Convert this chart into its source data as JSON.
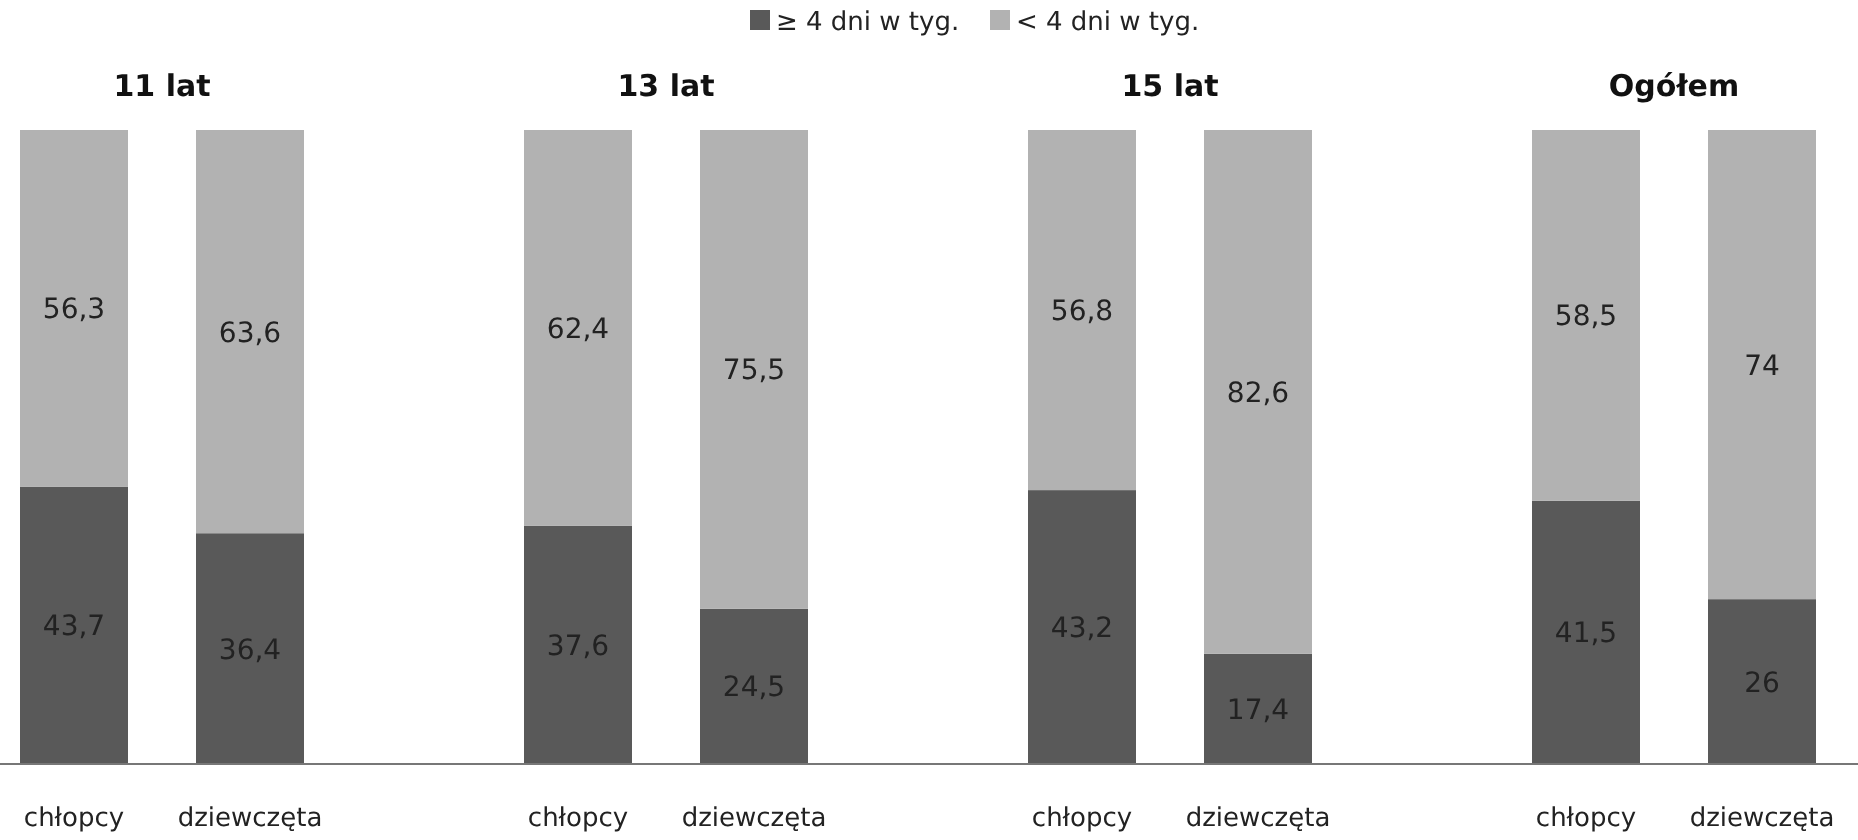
{
  "chart_data": {
    "type": "bar",
    "stacked": true,
    "legend": "top",
    "categories": [
      "chłopcy",
      "dziewczęta",
      "chłopcy",
      "dziewczęta",
      "chłopcy",
      "dziewczęta",
      "chłopcy",
      "dziewczęta"
    ],
    "annotations": [
      "11 lat",
      "13 lat",
      "15 lat",
      "Ogółem"
    ],
    "series": [
      {
        "name": "≥ 4 dni w tyg.",
        "color": "#595959",
        "values": [
          43.7,
          36.4,
          37.6,
          24.5,
          43.2,
          17.4,
          41.5,
          26
        ],
        "value_labels": [
          "43,7",
          "36,4",
          "37,6",
          "24,5",
          "43,2",
          "17,4",
          "41,5",
          "26"
        ]
      },
      {
        "name": "< 4 dni w tyg.",
        "color": "#b2b2b2",
        "values": [
          56.3,
          63.6,
          62.4,
          75.5,
          56.8,
          82.6,
          58.5,
          74
        ],
        "value_labels": [
          "56,3",
          "63,6",
          "62,4",
          "75,5",
          "56,8",
          "82,6",
          "58,5",
          "74"
        ]
      }
    ]
  }
}
